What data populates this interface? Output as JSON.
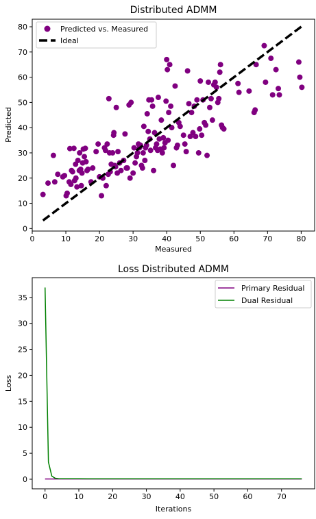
{
  "chart_data": [
    {
      "type": "scatter",
      "title": "Distributed ADMM",
      "xlabel": "Measured",
      "ylabel": "Predicted",
      "xlim": [
        0,
        84
      ],
      "ylim": [
        -1,
        83
      ],
      "xticks": [
        0,
        10,
        20,
        30,
        40,
        50,
        60,
        70,
        80
      ],
      "yticks": [
        0,
        10,
        20,
        30,
        40,
        50,
        60,
        70,
        80
      ],
      "legend_position": "top-left",
      "grid": false,
      "series": [
        {
          "name": "Predicted vs. Measured",
          "kind": "scatter",
          "color": "#800080",
          "points": [
            [
              3.2,
              13.5
            ],
            [
              4.7,
              18
            ],
            [
              6.3,
              29
            ],
            [
              6.7,
              18.5
            ],
            [
              7.6,
              21.5
            ],
            [
              9.1,
              20.5
            ],
            [
              9.6,
              21
            ],
            [
              10.1,
              13
            ],
            [
              10.4,
              14
            ],
            [
              11.0,
              18.5
            ],
            [
              11.2,
              31.7
            ],
            [
              11.5,
              17.5
            ],
            [
              11.7,
              23
            ],
            [
              12.0,
              22.5
            ],
            [
              12.4,
              31.8
            ],
            [
              12.6,
              19
            ],
            [
              12.9,
              25.5
            ],
            [
              13.0,
              20
            ],
            [
              13.3,
              16.5
            ],
            [
              13.6,
              27
            ],
            [
              14.0,
              23
            ],
            [
              14.1,
              30
            ],
            [
              14.4,
              23.5
            ],
            [
              14.6,
              17
            ],
            [
              14.8,
              22
            ],
            [
              15.0,
              26
            ],
            [
              15.2,
              31.5
            ],
            [
              15.5,
              28.5
            ],
            [
              15.8,
              31.8
            ],
            [
              16.0,
              26.5
            ],
            [
              16.3,
              23
            ],
            [
              16.6,
              23.5
            ],
            [
              17.5,
              18.5
            ],
            [
              18.0,
              24
            ],
            [
              19.0,
              30.5
            ],
            [
              19.6,
              33.5
            ],
            [
              20.0,
              20.5
            ],
            [
              20.6,
              13
            ],
            [
              21.0,
              20
            ],
            [
              21.5,
              32
            ],
            [
              21.8,
              31
            ],
            [
              22.0,
              17
            ],
            [
              22.3,
              33.5
            ],
            [
              22.6,
              21.5
            ],
            [
              22.8,
              51.5
            ],
            [
              23.0,
              30
            ],
            [
              23.2,
              22.5
            ],
            [
              23.5,
              25.5
            ],
            [
              23.9,
              30
            ],
            [
              24.2,
              37
            ],
            [
              24.3,
              38
            ],
            [
              24.5,
              25
            ],
            [
              24.8,
              24.5
            ],
            [
              25.0,
              48
            ],
            [
              25.3,
              22
            ],
            [
              25.5,
              30.5
            ],
            [
              26.0,
              26
            ],
            [
              26.4,
              23
            ],
            [
              27.2,
              27
            ],
            [
              27.6,
              37.5
            ],
            [
              28.0,
              24
            ],
            [
              28.3,
              24
            ],
            [
              28.8,
              49
            ],
            [
              29.1,
              20
            ],
            [
              29.4,
              50
            ],
            [
              30.0,
              22
            ],
            [
              30.3,
              32
            ],
            [
              30.6,
              26
            ],
            [
              31.0,
              28.5
            ],
            [
              31.3,
              30
            ],
            [
              31.6,
              33.5
            ],
            [
              31.9,
              32
            ],
            [
              32.2,
              33
            ],
            [
              32.5,
              25
            ],
            [
              32.8,
              24
            ],
            [
              33.0,
              30
            ],
            [
              33.2,
              40.5
            ],
            [
              33.5,
              27
            ],
            [
              33.7,
              32
            ],
            [
              34.0,
              33
            ],
            [
              34.2,
              45.5
            ],
            [
              34.5,
              38.5
            ],
            [
              34.7,
              51
            ],
            [
              35.0,
              35.5
            ],
            [
              35.2,
              31
            ],
            [
              35.5,
              51
            ],
            [
              35.8,
              48.5
            ],
            [
              36.1,
              23
            ],
            [
              36.4,
              38
            ],
            [
              36.7,
              32
            ],
            [
              37.0,
              33.5
            ],
            [
              37.3,
              31
            ],
            [
              37.5,
              52
            ],
            [
              37.8,
              35.5
            ],
            [
              38.1,
              31.5
            ],
            [
              38.4,
              43
            ],
            [
              38.7,
              30
            ],
            [
              39.0,
              36
            ],
            [
              39.2,
              32
            ],
            [
              39.5,
              34
            ],
            [
              39.8,
              50.5
            ],
            [
              40.0,
              67
            ],
            [
              40.2,
              63
            ],
            [
              40.4,
              35
            ],
            [
              40.6,
              46
            ],
            [
              40.9,
              65
            ],
            [
              41.2,
              48.5
            ],
            [
              41.5,
              40
            ],
            [
              42.0,
              25
            ],
            [
              42.5,
              56.5
            ],
            [
              42.9,
              32
            ],
            [
              43.2,
              33
            ],
            [
              43.6,
              42
            ],
            [
              44.0,
              40.5
            ],
            [
              45.0,
              37
            ],
            [
              45.4,
              33.5
            ],
            [
              45.8,
              30.5
            ],
            [
              46.2,
              62.5
            ],
            [
              46.6,
              49.5
            ],
            [
              47.0,
              36.5
            ],
            [
              47.4,
              46
            ],
            [
              47.8,
              38
            ],
            [
              48.2,
              48.5
            ],
            [
              48.6,
              36.5
            ],
            [
              49.0,
              51
            ],
            [
              49.5,
              30
            ],
            [
              49.8,
              39.5
            ],
            [
              50.0,
              58.5
            ],
            [
              50.4,
              37
            ],
            [
              50.8,
              51
            ],
            [
              51.2,
              42
            ],
            [
              51.6,
              41
            ],
            [
              52.0,
              29
            ],
            [
              52.4,
              58
            ],
            [
              52.8,
              48
            ],
            [
              53.2,
              51.5
            ],
            [
              53.6,
              43
            ],
            [
              54.0,
              57
            ],
            [
              54.4,
              58
            ],
            [
              54.8,
              56
            ],
            [
              55.2,
              50
            ],
            [
              55.5,
              51.5
            ],
            [
              55.8,
              62
            ],
            [
              56.0,
              65
            ],
            [
              56.3,
              41
            ],
            [
              56.6,
              40
            ],
            [
              57.0,
              39.5
            ],
            [
              61.2,
              57.5
            ],
            [
              61.5,
              54
            ],
            [
              64.5,
              54.5
            ],
            [
              66.0,
              46
            ],
            [
              66.3,
              47
            ],
            [
              66.6,
              65
            ],
            [
              69.0,
              72.5
            ],
            [
              69.4,
              58
            ],
            [
              71.0,
              67.5
            ],
            [
              71.5,
              53
            ],
            [
              72.5,
              63
            ],
            [
              73.2,
              55.5
            ],
            [
              73.5,
              53
            ],
            [
              79.3,
              66
            ],
            [
              79.6,
              60
            ],
            [
              80.2,
              56
            ]
          ]
        },
        {
          "name": "Ideal",
          "kind": "line",
          "style": "dashed",
          "color": "#000000",
          "points": [
            [
              3.2,
              3.2
            ],
            [
              80.2,
              80.2
            ]
          ]
        }
      ]
    },
    {
      "type": "line",
      "title": "Loss Distributed ADMM",
      "xlabel": "Iterations",
      "ylabel": "Loss",
      "xlim": [
        -3.8,
        79.8
      ],
      "ylim": [
        -1.85,
        38.8
      ],
      "xticks": [
        0,
        10,
        20,
        30,
        40,
        50,
        60,
        70
      ],
      "yticks": [
        0,
        5,
        10,
        15,
        20,
        25,
        30,
        35
      ],
      "legend_position": "top-right",
      "grid": false,
      "series": [
        {
          "name": "Primary Residual",
          "color": "#800080",
          "points": [
            [
              0,
              0.05
            ],
            [
              76,
              0.05
            ]
          ]
        },
        {
          "name": "Dual Residual",
          "color": "#008000",
          "points": [
            [
              0,
              36.9
            ],
            [
              1,
              3.3
            ],
            [
              2,
              0.6
            ],
            [
              3,
              0.2
            ],
            [
              4,
              0.12
            ],
            [
              5,
              0.1
            ],
            [
              10,
              0.09
            ],
            [
              20,
              0.08
            ],
            [
              40,
              0.08
            ],
            [
              60,
              0.08
            ],
            [
              76,
              0.08
            ]
          ]
        }
      ]
    }
  ]
}
